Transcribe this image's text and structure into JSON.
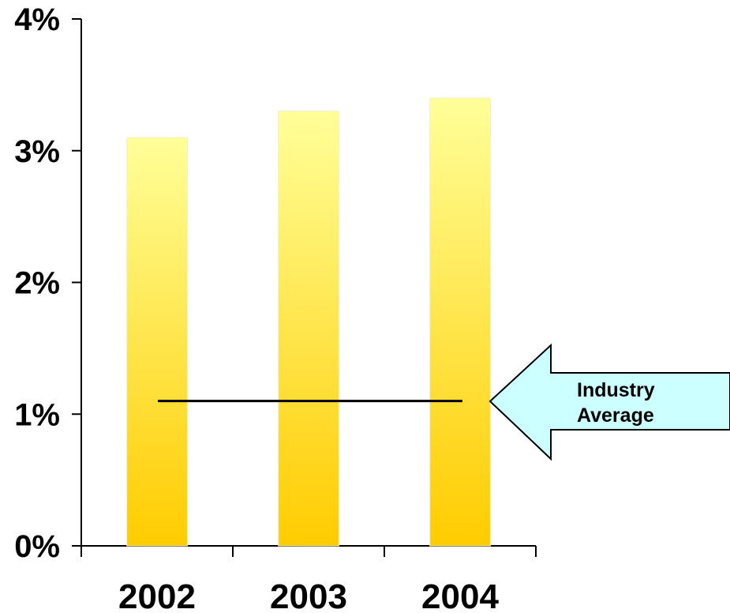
{
  "chart_data": {
    "type": "bar",
    "categories": [
      "2002",
      "2003",
      "2004"
    ],
    "values": [
      3.1,
      3.3,
      3.4
    ],
    "title": "",
    "xlabel": "",
    "ylabel": "",
    "ylim": [
      0,
      4
    ],
    "yticks": [
      "0%",
      "1%",
      "2%",
      "3%",
      "4%"
    ],
    "grid": false,
    "reference_line": {
      "value": 1.1
    },
    "callout": {
      "line1": "Industry",
      "line2": "Average"
    },
    "colors": {
      "bar_top": "#FFFF99",
      "bar_bottom": "#FFCC00",
      "callout_fill": "#CCFFFF",
      "axis": "#000000"
    }
  }
}
